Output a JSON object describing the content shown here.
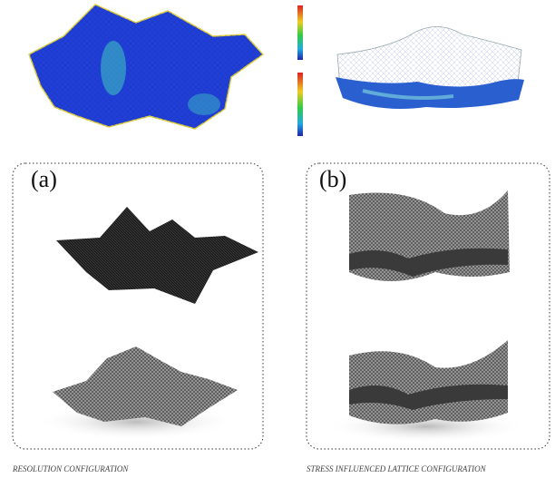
{
  "panels": [
    {
      "label": "(a)",
      "caption": "RESOLUTION CONFIGURATION"
    },
    {
      "label": "(b)",
      "caption": "STRESS INFLUENCED LATTICE CONFIGURATION"
    }
  ]
}
